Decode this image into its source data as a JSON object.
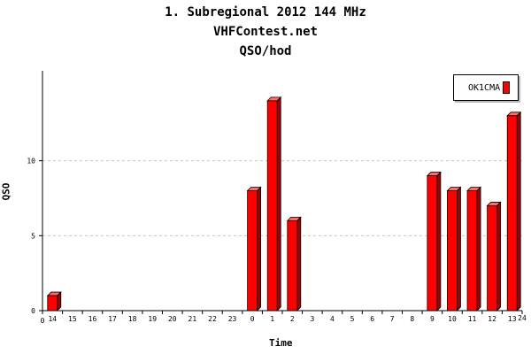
{
  "chart_data": {
    "type": "bar",
    "title": "1. Subregional 2012 144 MHz",
    "subtitle": "VHFContest.net",
    "subtitle2": "QSO/hod",
    "xlabel": "Time",
    "ylabel": "QSO",
    "categories": [
      "14",
      "15",
      "16",
      "17",
      "18",
      "19",
      "20",
      "21",
      "22",
      "23",
      "0",
      "1",
      "2",
      "3",
      "4",
      "5",
      "6",
      "7",
      "8",
      "9",
      "10",
      "11",
      "12",
      "13"
    ],
    "series": [
      {
        "name": "OK1CMA",
        "color": "#ff0000",
        "values": [
          1,
          0,
          0,
          0,
          0,
          0,
          0,
          0,
          0,
          0,
          8,
          14,
          6,
          0,
          0,
          0,
          0,
          0,
          0,
          9,
          8,
          8,
          7,
          13
        ]
      }
    ],
    "ylim": [
      0,
      16
    ],
    "yticks": [
      0,
      5,
      10
    ],
    "x_edge_labels": [
      "0",
      "24"
    ],
    "grid": true,
    "legend_position": "top-right"
  }
}
